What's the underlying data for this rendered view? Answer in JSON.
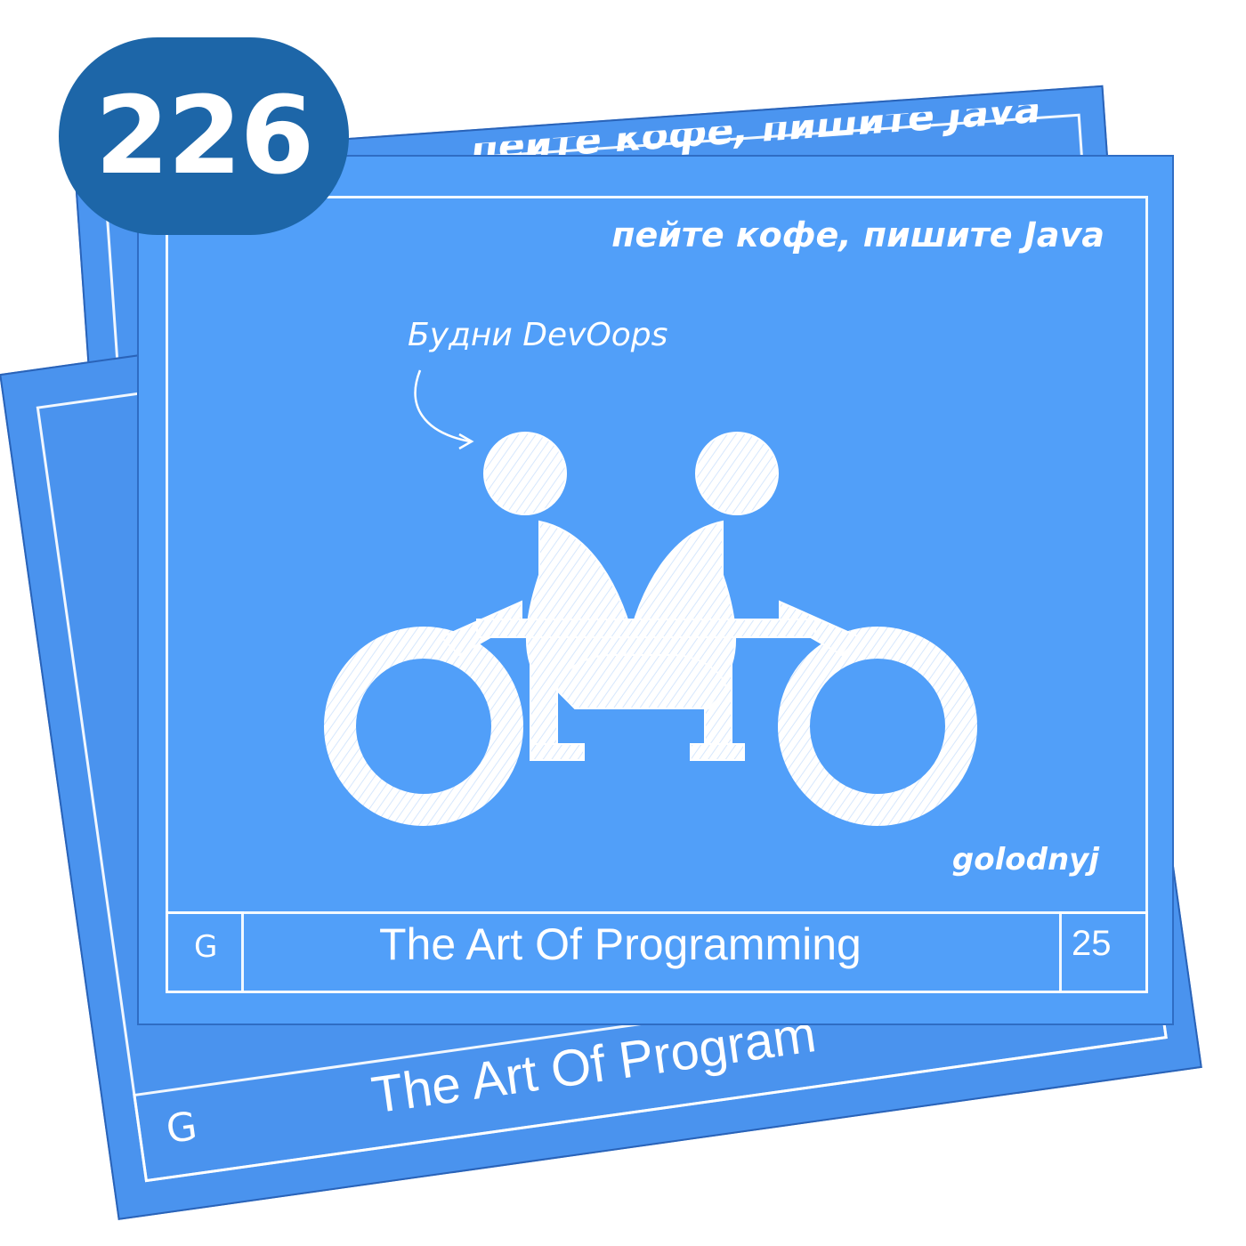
{
  "badge": {
    "number": "226"
  },
  "back_card": {
    "top_text": "пейте кофе, пишите Java",
    "footer_title": "The Art Of Program",
    "footer_left": "G"
  },
  "front_card": {
    "tagline": "пейте кофе, пишите Java",
    "callout": "Будни DevOops",
    "author": "golodnyj",
    "footer_left": "G",
    "footer_title": "The Art Of Programming",
    "footer_right": "25"
  },
  "colors": {
    "card": "#519ff9",
    "badge": "#1d66a8",
    "ink": "#ffffff"
  }
}
